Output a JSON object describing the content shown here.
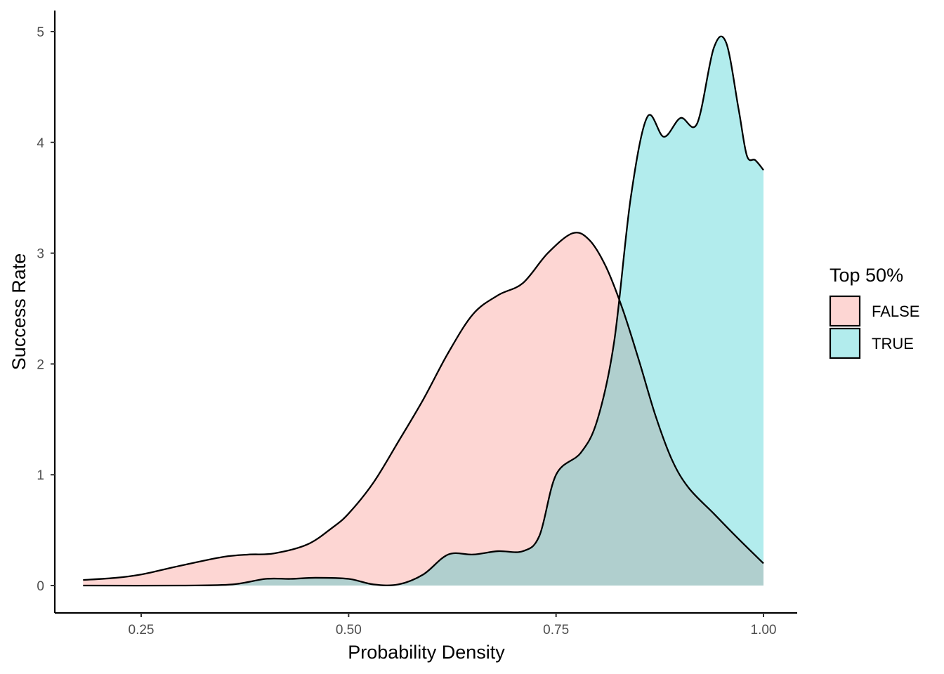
{
  "chart_data": {
    "type": "area",
    "title": "",
    "xlabel": "Probability Density",
    "ylabel": "Success Rate",
    "xlim": [
      0.1806,
      1.0
    ],
    "ylim": [
      0,
      5
    ],
    "x_ticks": [
      0.25,
      0.5,
      0.75,
      1.0
    ],
    "x_tick_labels": [
      "0.25",
      "0.50",
      "0.75",
      "1.00"
    ],
    "y_ticks": [
      0,
      1,
      2,
      3,
      4,
      5
    ],
    "y_tick_labels": [
      "0",
      "1",
      "2",
      "3",
      "4",
      "5"
    ],
    "grid": false,
    "legend": {
      "title": "Top 50%",
      "placement": "right",
      "entries": [
        {
          "label": "FALSE",
          "color": "#F8766D"
        },
        {
          "label": "TRUE",
          "color": "#00BFC4"
        }
      ]
    },
    "series": [
      {
        "name": "FALSE",
        "color": "#F8766D",
        "fill_opacity": 0.3,
        "points": [
          [
            0.18,
            0.05
          ],
          [
            0.22,
            0.07
          ],
          [
            0.25,
            0.1
          ],
          [
            0.28,
            0.15
          ],
          [
            0.31,
            0.2
          ],
          [
            0.35,
            0.26
          ],
          [
            0.38,
            0.28
          ],
          [
            0.41,
            0.29
          ],
          [
            0.45,
            0.37
          ],
          [
            0.48,
            0.52
          ],
          [
            0.5,
            0.65
          ],
          [
            0.53,
            0.93
          ],
          [
            0.56,
            1.3
          ],
          [
            0.59,
            1.68
          ],
          [
            0.62,
            2.1
          ],
          [
            0.65,
            2.45
          ],
          [
            0.68,
            2.62
          ],
          [
            0.71,
            2.73
          ],
          [
            0.74,
            3.0
          ],
          [
            0.77,
            3.18
          ],
          [
            0.79,
            3.12
          ],
          [
            0.81,
            2.88
          ],
          [
            0.83,
            2.5
          ],
          [
            0.85,
            2.03
          ],
          [
            0.87,
            1.53
          ],
          [
            0.89,
            1.13
          ],
          [
            0.91,
            0.88
          ],
          [
            0.94,
            0.65
          ],
          [
            0.97,
            0.42
          ],
          [
            1.0,
            0.2
          ]
        ]
      },
      {
        "name": "TRUE",
        "color": "#00BFC4",
        "fill_opacity": 0.3,
        "points": [
          [
            0.18,
            0.0
          ],
          [
            0.3,
            0.0
          ],
          [
            0.36,
            0.01
          ],
          [
            0.4,
            0.06
          ],
          [
            0.43,
            0.06
          ],
          [
            0.46,
            0.07
          ],
          [
            0.5,
            0.06
          ],
          [
            0.53,
            0.01
          ],
          [
            0.56,
            0.01
          ],
          [
            0.59,
            0.1
          ],
          [
            0.62,
            0.28
          ],
          [
            0.65,
            0.28
          ],
          [
            0.68,
            0.31
          ],
          [
            0.71,
            0.31
          ],
          [
            0.73,
            0.45
          ],
          [
            0.75,
            1.0
          ],
          [
            0.78,
            1.2
          ],
          [
            0.8,
            1.5
          ],
          [
            0.82,
            2.2
          ],
          [
            0.84,
            3.5
          ],
          [
            0.86,
            4.23
          ],
          [
            0.88,
            4.05
          ],
          [
            0.9,
            4.22
          ],
          [
            0.92,
            4.17
          ],
          [
            0.94,
            4.85
          ],
          [
            0.955,
            4.9
          ],
          [
            0.97,
            4.3
          ],
          [
            0.98,
            3.88
          ],
          [
            0.99,
            3.84
          ],
          [
            1.0,
            3.75
          ]
        ]
      }
    ]
  }
}
